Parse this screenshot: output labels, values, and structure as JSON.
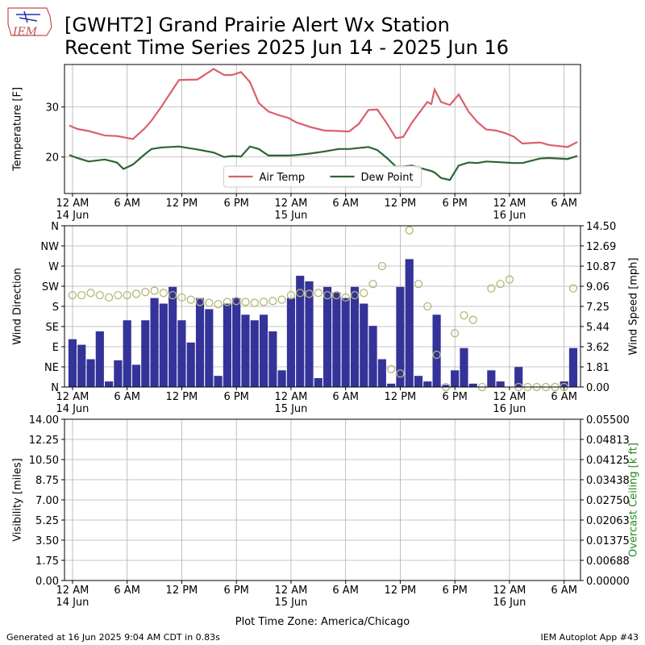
{
  "header": {
    "logo_text": "IEM",
    "title": "[GWHT2] Grand Prairie Alert Wx Station",
    "subtitle": "Recent Time Series 2025 Jun 14 - 2025 Jun 16"
  },
  "chart_data": [
    {
      "type": "line",
      "ylabel": "Temperature [F]",
      "grid": true,
      "legend": "lower center",
      "xlim": [
        -0.88,
        55.8
      ],
      "xticks": [
        {
          "value": 0,
          "label": "12 AM\n14 Jun"
        },
        {
          "value": 6,
          "label": "6 AM"
        },
        {
          "value": 12,
          "label": "12 PM"
        },
        {
          "value": 18,
          "label": "6 PM"
        },
        {
          "value": 24,
          "label": "12 AM\n15 Jun"
        },
        {
          "value": 30,
          "label": "6 AM"
        },
        {
          "value": 36,
          "label": "12 PM"
        },
        {
          "value": 42,
          "label": "6 PM"
        },
        {
          "value": 48,
          "label": "12 AM\n16 Jun"
        },
        {
          "value": 54,
          "label": "6 AM"
        }
      ],
      "ylim": [
        12.7,
        38.5
      ],
      "yticks": [
        20,
        30
      ],
      "series": [
        {
          "name": "Air Temp",
          "color": "#d9606a",
          "x": [
            -0.35,
            0.53,
            1.77,
            3.54,
            4.87,
            6.64,
            7.97,
            8.68,
            9.74,
            11.69,
            13.73,
            15.5,
            16.65,
            17.54,
            18.51,
            19.49,
            20.46,
            21.52,
            22.59,
            23.74,
            24.62,
            26.13,
            27.64,
            29.23,
            30.38,
            31.44,
            32.51,
            33.48,
            34.54,
            35.52,
            36.32,
            37.29,
            38.97,
            39.42,
            39.77,
            40.48,
            41.45,
            42.43,
            43.49,
            44.47,
            45.44,
            46.5,
            47.48,
            48.45,
            49.42,
            51.37,
            52.35,
            54.38,
            55.45
          ],
          "values": [
            26.3,
            25.6,
            25.2,
            24.3,
            24.2,
            23.6,
            25.8,
            27.3,
            30.0,
            35.4,
            35.5,
            37.6,
            36.4,
            36.4,
            37.0,
            35.0,
            30.8,
            29.1,
            28.4,
            27.8,
            26.9,
            26.0,
            25.3,
            25.2,
            25.1,
            26.6,
            29.4,
            29.5,
            26.7,
            23.8,
            24.0,
            26.9,
            31.0,
            30.6,
            33.5,
            31.0,
            30.4,
            32.5,
            29.1,
            27.0,
            25.5,
            25.3,
            24.8,
            24.1,
            22.7,
            22.9,
            22.4,
            22.0,
            23.0
          ]
        },
        {
          "name": "Dew Point",
          "color": "#2e6432",
          "x": [
            -0.35,
            0.53,
            1.77,
            3.54,
            4.87,
            5.6,
            6.64,
            7.97,
            8.68,
            9.74,
            11.69,
            13.73,
            15.5,
            16.65,
            17.54,
            18.51,
            19.49,
            20.46,
            21.52,
            22.59,
            23.74,
            24.62,
            26.13,
            27.64,
            29.23,
            30.38,
            31.44,
            32.51,
            33.48,
            34.54,
            35.52,
            36.32,
            37.29,
            38.97,
            39.42,
            39.77,
            40.48,
            41.45,
            42.43,
            43.49,
            44.47,
            45.44,
            46.5,
            47.48,
            48.45,
            49.42,
            51.37,
            52.35,
            54.38,
            55.45
          ],
          "values": [
            20.4,
            19.8,
            19.1,
            19.5,
            18.9,
            17.6,
            18.5,
            20.6,
            21.6,
            21.9,
            22.1,
            21.5,
            20.9,
            20.0,
            20.2,
            20.1,
            22.1,
            21.6,
            20.3,
            20.3,
            20.3,
            20.4,
            20.7,
            21.1,
            21.6,
            21.6,
            21.8,
            22.0,
            21.4,
            19.8,
            18.1,
            18.1,
            18.3,
            17.4,
            17.2,
            16.9,
            15.8,
            15.4,
            18.3,
            18.9,
            18.8,
            19.1,
            19.0,
            18.9,
            18.8,
            18.8,
            19.7,
            19.8,
            19.6,
            20.2
          ]
        }
      ]
    },
    {
      "type": "wind",
      "ylabel": "Wind Direction",
      "y2label": "Wind Speed [mph]",
      "grid": true,
      "xlim": [
        -0.88,
        55.8
      ],
      "xticks": [
        {
          "value": 0,
          "label": "12 AM\n14 Jun"
        },
        {
          "value": 6,
          "label": "6 AM"
        },
        {
          "value": 12,
          "label": "12 PM"
        },
        {
          "value": 18,
          "label": "6 PM"
        },
        {
          "value": 24,
          "label": "12 AM\n15 Jun"
        },
        {
          "value": 30,
          "label": "6 AM"
        },
        {
          "value": 36,
          "label": "12 PM"
        },
        {
          "value": 42,
          "label": "6 PM"
        },
        {
          "value": 48,
          "label": "12 AM\n16 Jun"
        },
        {
          "value": 54,
          "label": "6 AM"
        }
      ],
      "ylim": [
        0,
        360
      ],
      "yticks": [
        {
          "value": 0,
          "label": "N"
        },
        {
          "value": 45,
          "label": "NE"
        },
        {
          "value": 90,
          "label": "E"
        },
        {
          "value": 135,
          "label": "SE"
        },
        {
          "value": 180,
          "label": "S"
        },
        {
          "value": 225,
          "label": "SW"
        },
        {
          "value": 270,
          "label": "W"
        },
        {
          "value": 315,
          "label": "NW"
        },
        {
          "value": 360,
          "label": "N"
        }
      ],
      "y2lim": [
        0,
        14.5
      ],
      "y2ticks": [
        {
          "value": 0,
          "label": "0.00"
        },
        {
          "value": 1.81,
          "label": "1.81"
        },
        {
          "value": 3.62,
          "label": "3.62"
        },
        {
          "value": 5.44,
          "label": "5.44"
        },
        {
          "value": 7.25,
          "label": "7.25"
        },
        {
          "value": 9.06,
          "label": "9.06"
        },
        {
          "value": 10.87,
          "label": "10.87"
        },
        {
          "value": 12.69,
          "label": "12.69"
        },
        {
          "value": 14.5,
          "label": "14.50"
        }
      ],
      "x": [
        0,
        1,
        2,
        3,
        4,
        5,
        6,
        7,
        8,
        9,
        10,
        11,
        12,
        13,
        14,
        15,
        16,
        17,
        18,
        19,
        20,
        21,
        22,
        23,
        24,
        25,
        26,
        27,
        28,
        29,
        30,
        31,
        32,
        33,
        34,
        35,
        36,
        37,
        38,
        39,
        40,
        41,
        42,
        43,
        44,
        45,
        46,
        47,
        48,
        49,
        50,
        51,
        52,
        53,
        54,
        55
      ],
      "series": [
        {
          "kind": "bar",
          "axis": "y2",
          "color": "#333399",
          "values": [
            4.3,
            3.8,
            2.5,
            5.0,
            0.5,
            2.4,
            6.0,
            2.0,
            6.0,
            8.0,
            7.5,
            9.0,
            6.0,
            4.0,
            8.0,
            7.0,
            1.0,
            7.5,
            8.0,
            6.5,
            6.0,
            6.5,
            5.0,
            1.5,
            8.0,
            10.0,
            9.5,
            0.8,
            9.0,
            8.5,
            8.0,
            9.0,
            7.5,
            5.5,
            2.5,
            0.3,
            9.0,
            11.5,
            1.0,
            0.5,
            6.5,
            0.2,
            1.5,
            3.5,
            0.3,
            0,
            1.5,
            0.5,
            0,
            1.8,
            0,
            0,
            0,
            0,
            0.5,
            3.5
          ]
        },
        {
          "kind": "scatter",
          "color": "#b5b57a",
          "values": [
            205,
            205,
            210,
            205,
            200,
            205,
            205,
            208,
            212,
            215,
            210,
            205,
            200,
            195,
            190,
            188,
            185,
            190,
            192,
            190,
            188,
            190,
            192,
            195,
            205,
            210,
            208,
            210,
            205,
            205,
            200,
            205,
            210,
            230,
            270,
            40,
            30,
            350,
            230,
            180,
            72,
            0,
            120,
            160,
            150,
            0,
            220,
            230,
            240,
            0,
            0,
            0,
            0,
            0,
            0,
            220
          ]
        }
      ]
    },
    {
      "type": "empty",
      "ylabel": "Visibility [miles]",
      "y2label": "Overcast Ceiling [k ft]",
      "xlabel": "Plot Time Zone: America/Chicago",
      "grid": true,
      "xlim": [
        -0.88,
        55.8
      ],
      "xticks": [
        {
          "value": 0,
          "label": "12 AM\n14 Jun"
        },
        {
          "value": 6,
          "label": "6 AM"
        },
        {
          "value": 12,
          "label": "12 PM"
        },
        {
          "value": 18,
          "label": "6 PM"
        },
        {
          "value": 24,
          "label": "12 AM\n15 Jun"
        },
        {
          "value": 30,
          "label": "6 AM"
        },
        {
          "value": 36,
          "label": "12 PM"
        },
        {
          "value": 42,
          "label": "6 PM"
        },
        {
          "value": 48,
          "label": "12 AM\n16 Jun"
        },
        {
          "value": 54,
          "label": "6 AM"
        }
      ],
      "ylim": [
        0,
        14
      ],
      "yticks": [
        {
          "value": 0,
          "label": "0.00"
        },
        {
          "value": 1.75,
          "label": "1.75"
        },
        {
          "value": 3.5,
          "label": "3.50"
        },
        {
          "value": 5.25,
          "label": "5.25"
        },
        {
          "value": 7,
          "label": "7.00"
        },
        {
          "value": 8.75,
          "label": "8.75"
        },
        {
          "value": 10.5,
          "label": "10.50"
        },
        {
          "value": 12.25,
          "label": "12.25"
        },
        {
          "value": 14,
          "label": "14.00"
        }
      ],
      "y2lim": [
        0,
        0.055
      ],
      "y2color": "#228b22",
      "y2ticks": [
        {
          "value": 0,
          "label": "0.00000"
        },
        {
          "value": 0.006875,
          "label": "0.00688"
        },
        {
          "value": 0.01375,
          "label": "0.01375"
        },
        {
          "value": 0.020625,
          "label": "0.02063"
        },
        {
          "value": 0.0275,
          "label": "0.02750"
        },
        {
          "value": 0.034375,
          "label": "0.03438"
        },
        {
          "value": 0.04125,
          "label": "0.04125"
        },
        {
          "value": 0.048125,
          "label": "0.04813"
        },
        {
          "value": 0.055,
          "label": "0.05500"
        }
      ]
    }
  ],
  "footer": {
    "left": "Generated at 16 Jun 2025 9:04 AM CDT in 0.83s",
    "right": "IEM Autoplot App #43"
  }
}
